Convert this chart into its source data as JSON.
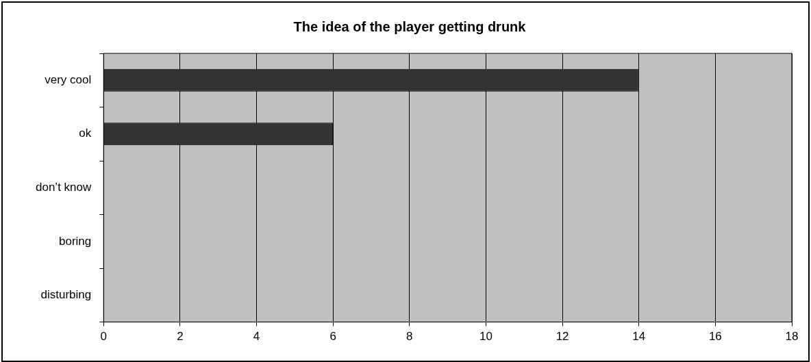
{
  "chart_data": {
    "type": "bar",
    "orientation": "horizontal",
    "title": "The idea of the player getting drunk",
    "categories": [
      "very cool",
      "ok",
      "don’t know",
      "boring",
      "disturbing"
    ],
    "values": [
      14,
      6,
      0,
      0,
      0
    ],
    "color": "#333333",
    "xlim": [
      0,
      18
    ],
    "xticks": [
      0,
      2,
      4,
      6,
      8,
      10,
      12,
      14,
      16,
      18
    ],
    "grid": "x",
    "legend": false
  }
}
